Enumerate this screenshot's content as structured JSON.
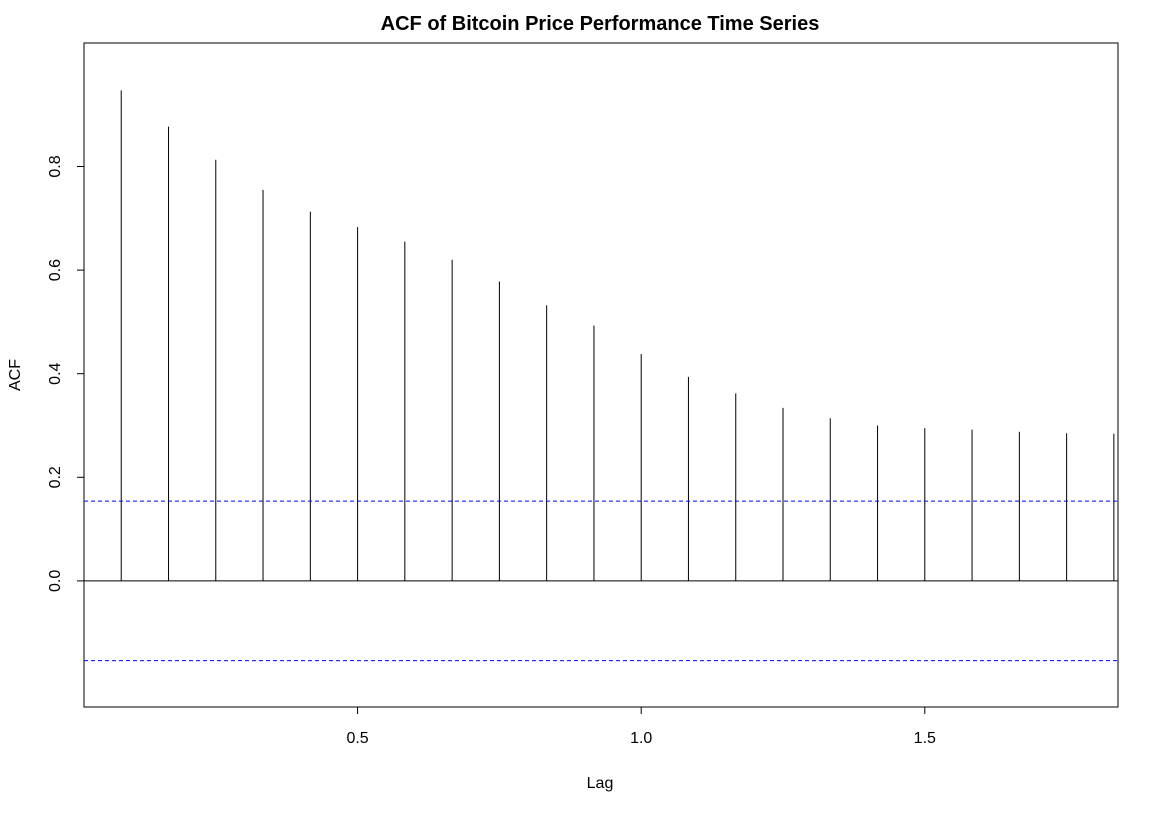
{
  "chart_data": {
    "type": "bar",
    "title": "ACF of Bitcoin Price Performance Time Series",
    "xlabel": "Lag",
    "ylabel": "ACF",
    "xlim": [
      0.0833,
      1.8333
    ],
    "ylim": [
      -0.196,
      0.991
    ],
    "x_ticks": [
      "0.5",
      "1.0",
      "1.5"
    ],
    "y_ticks": [
      "0.0",
      "0.2",
      "0.4",
      "0.6",
      "0.8"
    ],
    "lags": [
      0.0833,
      0.1667,
      0.25,
      0.3333,
      0.4167,
      0.5,
      0.5833,
      0.6667,
      0.75,
      0.8333,
      0.9167,
      1.0,
      1.0833,
      1.1667,
      1.25,
      1.3333,
      1.4167,
      1.5,
      1.5833,
      1.6667,
      1.75,
      1.8333
    ],
    "values": [
      0.947,
      0.877,
      0.813,
      0.755,
      0.713,
      0.683,
      0.655,
      0.62,
      0.578,
      0.532,
      0.493,
      0.438,
      0.394,
      0.362,
      0.334,
      0.314,
      0.3,
      0.295,
      0.292,
      0.288,
      0.285,
      0.284
    ],
    "confidence_bound": 0.154,
    "grid": false,
    "colors": {
      "bars": "#000000",
      "bounds": "#0000ff",
      "axes": "#000000"
    }
  }
}
